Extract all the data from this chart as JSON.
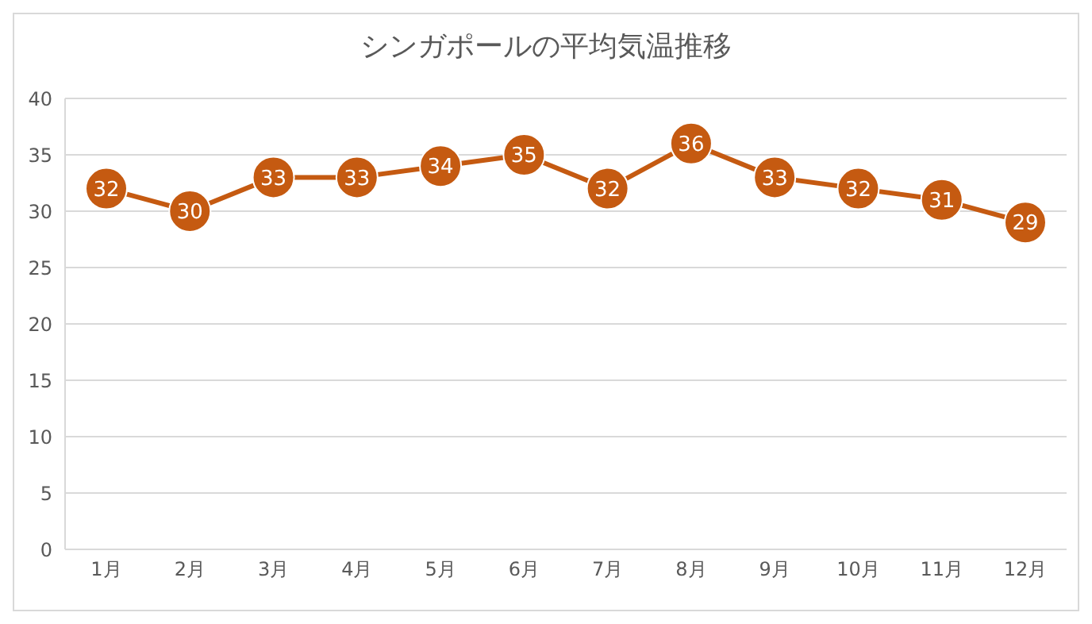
{
  "chart_data": {
    "type": "line",
    "title": "シンガポールの平均気温推移",
    "categories": [
      "1月",
      "2月",
      "3月",
      "4月",
      "5月",
      "6月",
      "7月",
      "8月",
      "9月",
      "10月",
      "11月",
      "12月"
    ],
    "series": [
      {
        "color": "#c55a11",
        "values": [
          32,
          30,
          33,
          33,
          34,
          35,
          32,
          36,
          33,
          32,
          31,
          29
        ]
      }
    ],
    "ylim": [
      0,
      40
    ],
    "yticks": [
      0,
      5,
      10,
      15,
      20,
      25,
      30,
      35,
      40
    ],
    "grid": "y",
    "marker": "circle",
    "line_style": "solid",
    "data_labels": true,
    "legend": false
  }
}
